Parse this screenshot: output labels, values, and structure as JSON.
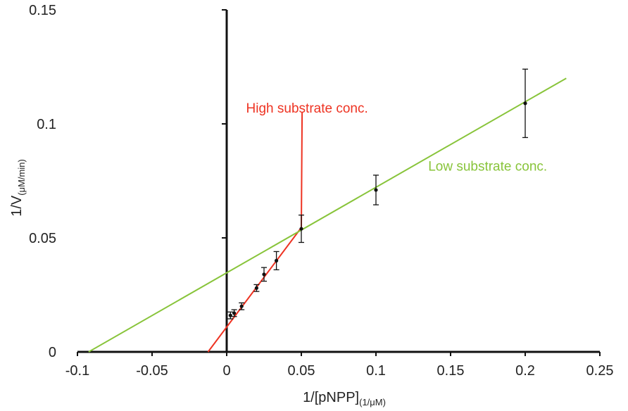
{
  "chart_data": {
    "type": "scatter",
    "title": "",
    "xlabel": {
      "main": "1/[pNPP]",
      "sub": "(1/μM)"
    },
    "ylabel": {
      "main": "1/V",
      "sub": "(μM/min)"
    },
    "xlim": [
      -0.1,
      0.25
    ],
    "ylim": [
      0,
      0.15
    ],
    "x_ticks": [
      -0.1,
      -0.05,
      0,
      0.05,
      0.1,
      0.15,
      0.2,
      0.25
    ],
    "x_tick_labels": [
      "-0.1",
      "-0.05",
      "0",
      "0.05",
      "0.1",
      "0.15",
      "0.2",
      "0.25"
    ],
    "y_ticks": [
      0,
      0.05,
      0.1,
      0.15
    ],
    "y_tick_labels": [
      "0",
      "0.05",
      "0.1",
      "0.15"
    ],
    "grid": false,
    "points": [
      {
        "x": 0.0025,
        "y": 0.016,
        "err": 0.0015
      },
      {
        "x": 0.005,
        "y": 0.017,
        "err": 0.0015
      },
      {
        "x": 0.01,
        "y": 0.02,
        "err": 0.0015
      },
      {
        "x": 0.02,
        "y": 0.028,
        "err": 0.0015
      },
      {
        "x": 0.025,
        "y": 0.034,
        "err": 0.003
      },
      {
        "x": 0.0333,
        "y": 0.04,
        "err": 0.004
      },
      {
        "x": 0.05,
        "y": 0.054,
        "err": 0.006
      },
      {
        "x": 0.1,
        "y": 0.071,
        "err": 0.0065
      },
      {
        "x": 0.2,
        "y": 0.109,
        "err": 0.015
      }
    ],
    "lines": [
      {
        "label": "High substrate conc.",
        "color": "#ee3322",
        "x": [
          -0.0125,
          0.05,
          0.0505
        ],
        "y": [
          0,
          0.0545,
          0.105
        ]
      },
      {
        "label": "Low substrate conc.",
        "color": "#88c43a",
        "x": [
          -0.0925,
          0.2275
        ],
        "y": [
          0,
          0.12
        ]
      }
    ]
  }
}
